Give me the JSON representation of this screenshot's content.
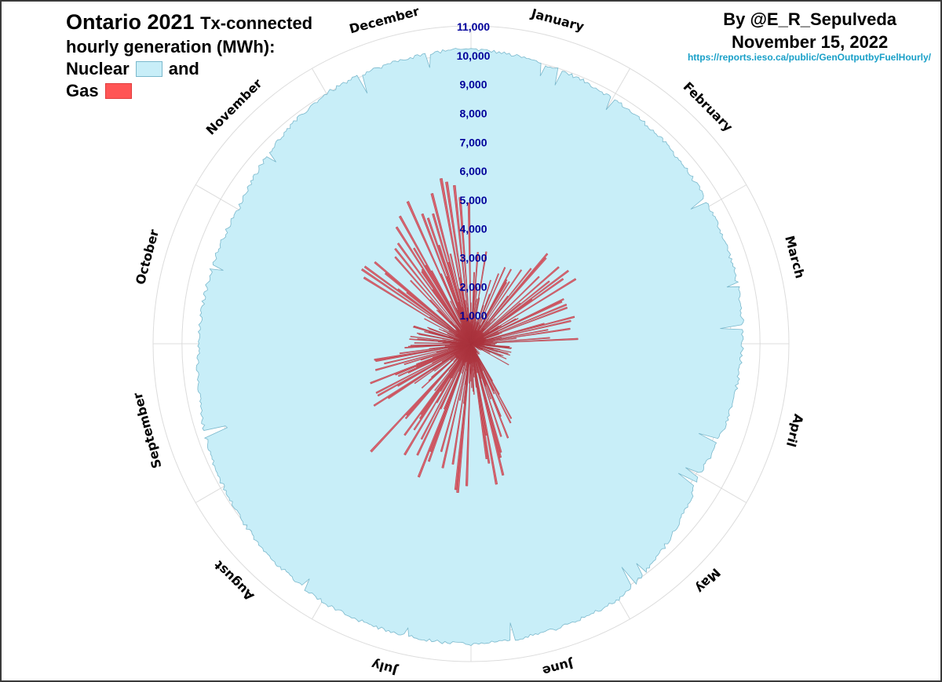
{
  "title": {
    "main": "Ontario 2021",
    "suffix": "Tx-connected",
    "line2": "hourly generation (MWh):"
  },
  "legend": {
    "nuclear_label": "Nuclear",
    "and_label": "and",
    "gas_label": "Gas"
  },
  "credit": {
    "author": "By @E_R_Sepulveda",
    "date": "November 15, 2022",
    "source": "https://reports.ieso.ca/public/GenOutputbyFuelHourly/"
  },
  "colors": {
    "nuclear_fill": "#c8eef8",
    "nuclear_edge": "#7ab8cc",
    "gas_fill": "#d9535f",
    "gas_edge": "#a8323c",
    "grid": "#dcdcdc",
    "tick_label": "#00009a"
  },
  "chart_data": {
    "type": "polar-area",
    "title": "Ontario 2021 Tx-connected hourly generation (MWh):",
    "radial_range": [
      0,
      11000
    ],
    "radial_ticks": [
      1000,
      2000,
      3000,
      4000,
      5000,
      6000,
      7000,
      8000,
      9000,
      10000,
      11000
    ],
    "radial_tick_labels": [
      "1,000",
      "2,000",
      "3,000",
      "4,000",
      "5,000",
      "6,000",
      "7,000",
      "8,000",
      "9,000",
      "10,000",
      "11,000"
    ],
    "months": [
      "January",
      "February",
      "March",
      "April",
      "May",
      "June",
      "July",
      "August",
      "September",
      "October",
      "November",
      "December"
    ],
    "direction": "clockwise from top",
    "grid": true,
    "legend_position": "top-left",
    "series": [
      {
        "name": "Nuclear",
        "monthly_typical_mwh": [
          10200,
          9800,
          9500,
          9400,
          9100,
          10200,
          10400,
          10300,
          9900,
          9400,
          9300,
          10000
        ]
      },
      {
        "name": "Gas",
        "monthly_peak_mwh": [
          3800,
          4300,
          3800,
          1500,
          500,
          5200,
          5300,
          5600,
          3800,
          2200,
          4800,
          5900
        ]
      }
    ]
  }
}
